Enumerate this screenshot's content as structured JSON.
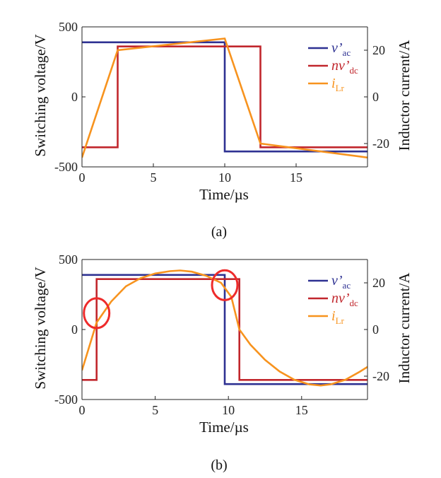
{
  "chart_data": [
    {
      "id": "a",
      "type": "line",
      "caption": "(a)",
      "xlabel": "Time/µs",
      "ylabel": "Switching voltage/V",
      "y2label": "Inductor current/A",
      "xlim": [
        0,
        20
      ],
      "ylim": [
        -500,
        500
      ],
      "y2lim": [
        -30,
        30
      ],
      "xticks": [
        "0",
        "5",
        "10",
        "15"
      ],
      "yticks": [
        "500",
        "0",
        "-500"
      ],
      "y2ticks": [
        "20",
        "0",
        "-20"
      ],
      "legend_position": "top-right",
      "series": [
        {
          "name": "v'ac",
          "label_main": "v’",
          "label_sub": "ac",
          "color": "#2e3192",
          "axis": "left",
          "x": [
            0,
            10,
            10,
            20
          ],
          "y": [
            390,
            390,
            -390,
            -390
          ]
        },
        {
          "name": "nv'dc",
          "label_main": "nv’",
          "label_sub": "dc",
          "color": "#c1272d",
          "axis": "left",
          "x": [
            0,
            2.5,
            2.5,
            12.5,
            12.5,
            20
          ],
          "y": [
            -360,
            -360,
            360,
            360,
            -360,
            -360
          ]
        },
        {
          "name": "iLr",
          "label_main": "i",
          "label_sub": "Lr",
          "color": "#f7931e",
          "axis": "right",
          "x": [
            0,
            2.5,
            10,
            12.5,
            20
          ],
          "y": [
            -26,
            20,
            25,
            -20,
            -26
          ]
        }
      ]
    },
    {
      "id": "b",
      "type": "line",
      "caption": "(b)",
      "xlabel": "Time/µs",
      "ylabel": "Switching voltage/V",
      "y2label": "Inductor current/A",
      "xlim": [
        0,
        19.5
      ],
      "ylim": [
        -500,
        500
      ],
      "y2lim": [
        -30,
        30
      ],
      "xticks": [
        "0",
        "5",
        "10",
        "15"
      ],
      "yticks": [
        "500",
        "0",
        "-500"
      ],
      "y2ticks": [
        "20",
        "0",
        "-20"
      ],
      "legend_position": "top-right",
      "series": [
        {
          "name": "v'ac",
          "label_main": "v’",
          "label_sub": "ac",
          "color": "#2e3192",
          "axis": "left",
          "x": [
            0,
            9.75,
            9.75,
            19.5
          ],
          "y": [
            390,
            390,
            -390,
            -390
          ]
        },
        {
          "name": "nv'dc",
          "label_main": "nv’",
          "label_sub": "dc",
          "color": "#c1272d",
          "axis": "left",
          "x": [
            0,
            1,
            1,
            10.75,
            10.75,
            19.5
          ],
          "y": [
            -360,
            -360,
            360,
            360,
            -360,
            -360
          ]
        },
        {
          "name": "iLr",
          "label_main": "i",
          "label_sub": "Lr",
          "color": "#f7931e",
          "axis": "right",
          "x": [
            0,
            1,
            2,
            3,
            4,
            5,
            6,
            6.7,
            7.5,
            8.5,
            9.5,
            10.2,
            10.75,
            11.5,
            12.5,
            13.5,
            14.5,
            15.5,
            16.3,
            17,
            18,
            19,
            19.5
          ],
          "y": [
            -17.5,
            3,
            12,
            18.5,
            22,
            24,
            25,
            25.3,
            24.8,
            23,
            20,
            14,
            0,
            -6.5,
            -13,
            -18,
            -21.5,
            -23.5,
            -24,
            -23.5,
            -21.5,
            -18,
            -16
          ]
        }
      ],
      "annotations": [
        {
          "type": "circle",
          "x": 1,
          "y2": 7,
          "color": "#ee2b2b"
        },
        {
          "type": "circle",
          "x": 9.75,
          "y2": 19,
          "color": "#ee2b2b"
        }
      ]
    }
  ]
}
